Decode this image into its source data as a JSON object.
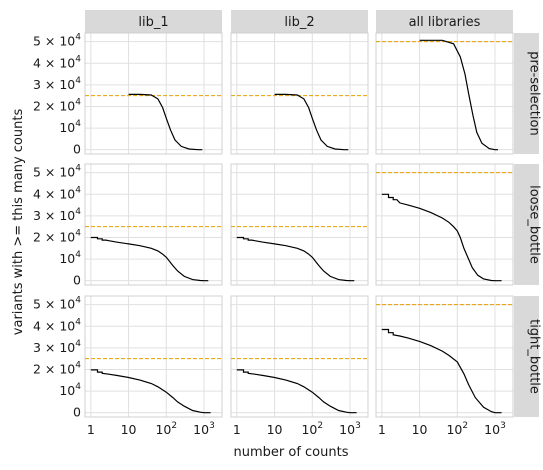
{
  "chart_data": {
    "type": "line",
    "facet_layout": {
      "rows": 3,
      "cols": 3
    },
    "column_labels": [
      "lib_1",
      "lib_2",
      "all libraries"
    ],
    "row_labels": [
      "pre-selection",
      "loose_bottle",
      "tight_bottle"
    ],
    "xlabel": "number of counts",
    "ylabel": "variants with >= this many counts",
    "x_scale": "log10",
    "xlim": [
      0.7,
      3000
    ],
    "x_ticks": [
      {
        "value": 1,
        "label": "1"
      },
      {
        "value": 10,
        "label": "10"
      },
      {
        "value": 100,
        "label_base": "10",
        "label_exp": "2"
      },
      {
        "value": 1000,
        "label_base": "10",
        "label_exp": "3"
      }
    ],
    "ylim": [
      -2000,
      54000
    ],
    "y_ticks": [
      {
        "value": 0,
        "label": "0"
      },
      {
        "value": 10000,
        "label_base": "10",
        "label_exp": "4"
      },
      {
        "value": 20000,
        "label_mult": "2 × ",
        "label_base": "10",
        "label_exp": "4"
      },
      {
        "value": 30000,
        "label_mult": "3 × ",
        "label_base": "10",
        "label_exp": "4"
      },
      {
        "value": 40000,
        "label_mult": "4 × ",
        "label_base": "10",
        "label_exp": "4"
      },
      {
        "value": 50000,
        "label_mult": "5 × ",
        "label_base": "10",
        "label_exp": "4"
      }
    ],
    "grid": true,
    "colors": {
      "line": "#000000",
      "reference": "#E69F00",
      "strip": "#d9d9d9",
      "grid": "#e0e0e0"
    },
    "panels": [
      {
        "row": 0,
        "col": 0,
        "reference_y": 25000,
        "points": [
          [
            10,
            25600
          ],
          [
            20,
            25600
          ],
          [
            40,
            25300
          ],
          [
            60,
            23500
          ],
          [
            80,
            19500
          ],
          [
            100,
            14500
          ],
          [
            130,
            9000
          ],
          [
            170,
            4500
          ],
          [
            250,
            1500
          ],
          [
            400,
            300
          ],
          [
            700,
            0
          ],
          [
            900,
            0
          ]
        ]
      },
      {
        "row": 0,
        "col": 1,
        "reference_y": 25000,
        "points": [
          [
            10,
            25600
          ],
          [
            20,
            25600
          ],
          [
            40,
            25300
          ],
          [
            60,
            23500
          ],
          [
            80,
            19500
          ],
          [
            100,
            14500
          ],
          [
            130,
            9000
          ],
          [
            170,
            4500
          ],
          [
            250,
            1500
          ],
          [
            400,
            300
          ],
          [
            700,
            0
          ],
          [
            900,
            0
          ]
        ]
      },
      {
        "row": 0,
        "col": 2,
        "reference_y": 50000,
        "points": [
          [
            10,
            50600
          ],
          [
            40,
            50600
          ],
          [
            80,
            49000
          ],
          [
            120,
            43000
          ],
          [
            160,
            35000
          ],
          [
            200,
            26000
          ],
          [
            260,
            16000
          ],
          [
            330,
            8000
          ],
          [
            450,
            3000
          ],
          [
            700,
            500
          ],
          [
            1000,
            0
          ],
          [
            1200,
            0
          ]
        ]
      },
      {
        "row": 1,
        "col": 0,
        "reference_y": 25000,
        "points": [
          [
            1,
            20000
          ],
          [
            1.5,
            20000
          ],
          [
            1.5,
            19400
          ],
          [
            2,
            19400
          ],
          [
            2,
            18800
          ],
          [
            2.5,
            18800
          ],
          [
            3,
            18500
          ],
          [
            5,
            17800
          ],
          [
            10,
            17000
          ],
          [
            20,
            16200
          ],
          [
            40,
            15000
          ],
          [
            60,
            13800
          ],
          [
            80,
            12300
          ],
          [
            100,
            10800
          ],
          [
            150,
            7000
          ],
          [
            200,
            4500
          ],
          [
            300,
            2000
          ],
          [
            500,
            500
          ],
          [
            800,
            100
          ],
          [
            1000,
            0
          ],
          [
            1300,
            0
          ]
        ]
      },
      {
        "row": 1,
        "col": 1,
        "reference_y": 25000,
        "points": [
          [
            1,
            20000
          ],
          [
            1.5,
            20000
          ],
          [
            1.5,
            19400
          ],
          [
            2,
            19400
          ],
          [
            2,
            18800
          ],
          [
            2.5,
            18800
          ],
          [
            3,
            18500
          ],
          [
            5,
            17800
          ],
          [
            10,
            17000
          ],
          [
            20,
            16200
          ],
          [
            40,
            15000
          ],
          [
            60,
            13800
          ],
          [
            80,
            12300
          ],
          [
            100,
            10800
          ],
          [
            150,
            7000
          ],
          [
            200,
            4500
          ],
          [
            300,
            2000
          ],
          [
            500,
            500
          ],
          [
            800,
            100
          ],
          [
            1000,
            0
          ],
          [
            1300,
            0
          ]
        ]
      },
      {
        "row": 1,
        "col": 2,
        "reference_y": 50000,
        "points": [
          [
            1,
            40000
          ],
          [
            1.5,
            40000
          ],
          [
            1.5,
            38500
          ],
          [
            2,
            38500
          ],
          [
            2,
            37500
          ],
          [
            2.5,
            37500
          ],
          [
            3,
            36000
          ],
          [
            5,
            35000
          ],
          [
            10,
            33500
          ],
          [
            20,
            31500
          ],
          [
            40,
            29000
          ],
          [
            60,
            27000
          ],
          [
            80,
            25000
          ],
          [
            100,
            23000
          ],
          [
            120,
            20000
          ],
          [
            150,
            15000
          ],
          [
            200,
            10000
          ],
          [
            250,
            6000
          ],
          [
            350,
            2500
          ],
          [
            500,
            800
          ],
          [
            800,
            100
          ],
          [
            1000,
            0
          ],
          [
            1500,
            0
          ]
        ]
      },
      {
        "row": 2,
        "col": 0,
        "reference_y": 25000,
        "points": [
          [
            1,
            19800
          ],
          [
            1.5,
            19800
          ],
          [
            1.5,
            18800
          ],
          [
            2,
            18800
          ],
          [
            2,
            18200
          ],
          [
            3,
            17800
          ],
          [
            5,
            17200
          ],
          [
            10,
            16300
          ],
          [
            20,
            15100
          ],
          [
            40,
            13500
          ],
          [
            60,
            12000
          ],
          [
            100,
            9500
          ],
          [
            150,
            7000
          ],
          [
            200,
            5000
          ],
          [
            300,
            3000
          ],
          [
            500,
            1000
          ],
          [
            800,
            200
          ],
          [
            1000,
            0
          ],
          [
            1500,
            0
          ]
        ]
      },
      {
        "row": 2,
        "col": 1,
        "reference_y": 25000,
        "points": [
          [
            1,
            19800
          ],
          [
            1.5,
            19800
          ],
          [
            1.5,
            18800
          ],
          [
            2,
            18800
          ],
          [
            2,
            18200
          ],
          [
            3,
            17800
          ],
          [
            5,
            17200
          ],
          [
            10,
            16300
          ],
          [
            20,
            15100
          ],
          [
            40,
            13500
          ],
          [
            60,
            12000
          ],
          [
            100,
            9500
          ],
          [
            150,
            7000
          ],
          [
            200,
            5000
          ],
          [
            300,
            3000
          ],
          [
            500,
            1000
          ],
          [
            800,
            200
          ],
          [
            1000,
            0
          ],
          [
            1500,
            0
          ]
        ]
      },
      {
        "row": 2,
        "col": 2,
        "reference_y": 50000,
        "points": [
          [
            1,
            38500
          ],
          [
            1.5,
            38500
          ],
          [
            1.5,
            37000
          ],
          [
            2,
            37000
          ],
          [
            2,
            36000
          ],
          [
            3,
            35500
          ],
          [
            5,
            34500
          ],
          [
            10,
            33000
          ],
          [
            20,
            31000
          ],
          [
            40,
            28500
          ],
          [
            60,
            26500
          ],
          [
            100,
            23500
          ],
          [
            150,
            18000
          ],
          [
            200,
            13000
          ],
          [
            300,
            7000
          ],
          [
            500,
            2500
          ],
          [
            800,
            500
          ],
          [
            1000,
            0
          ],
          [
            1500,
            0
          ]
        ]
      }
    ]
  }
}
